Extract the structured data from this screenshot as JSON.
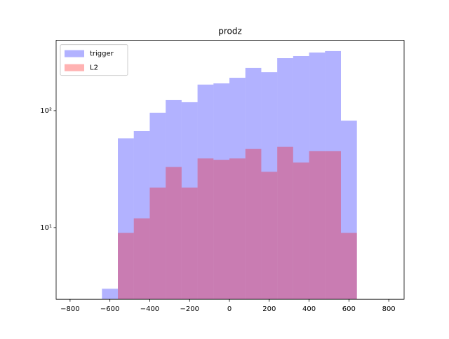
{
  "chart_data": {
    "type": "histogram",
    "title": "prodz",
    "bins": [
      -640,
      -560,
      -480,
      -400,
      -320,
      -240,
      -160,
      -80,
      0,
      80,
      160,
      240,
      320,
      400,
      480,
      560,
      640
    ],
    "series": [
      {
        "name": "trigger",
        "color": "#0000ff",
        "values": [
          3,
          58,
          67,
          96,
          123,
          118,
          167,
          171,
          191,
          232,
          213,
          281,
          293,
          314,
          323,
          82
        ]
      },
      {
        "name": "L2",
        "color": "#ff0000",
        "values": [
          0,
          9,
          12,
          22,
          33,
          22,
          39,
          38,
          39,
          47,
          30,
          49,
          36,
          45,
          45,
          9
        ]
      }
    ],
    "alpha": 0.3,
    "xlim": [
      -870,
      877
    ],
    "xticks": [
      {
        "value": -800,
        "label": "−800"
      },
      {
        "value": -600,
        "label": "−600"
      },
      {
        "value": -400,
        "label": "−400"
      },
      {
        "value": -200,
        "label": "−200"
      },
      0,
      200,
      400,
      600,
      800
    ],
    "ylim": [
      2.44,
      399
    ],
    "yticks": [
      {
        "value": 10,
        "label": "10¹"
      },
      {
        "value": 100,
        "label": "10²"
      }
    ],
    "yscale": "log",
    "legend": "upper left"
  }
}
